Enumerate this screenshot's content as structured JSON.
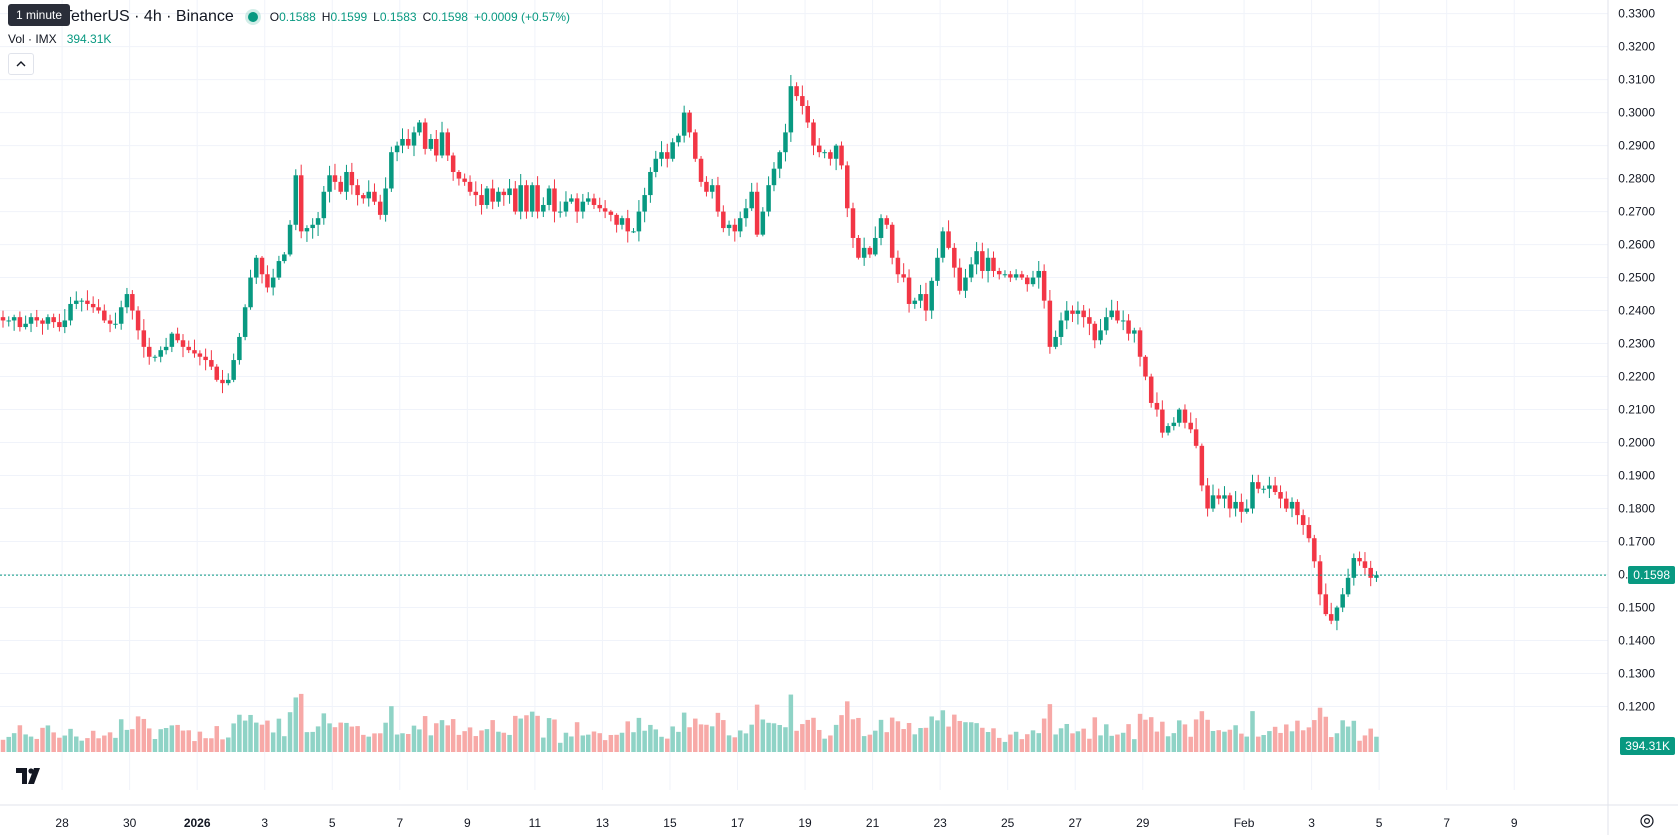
{
  "header": {
    "symbol_title": "IMX / TetherUS · 4h · Binance",
    "symbol_visible": "TetherUS · 4h · Binance",
    "ohlc": {
      "o_label": "O",
      "o": "0.1588",
      "h_label": "H",
      "h": "0.1599",
      "l_label": "L",
      "l": "0.1583",
      "c_label": "C",
      "c": "0.1598",
      "change": "+0.0009 (+0.57%)"
    },
    "tooltip": "1 minute"
  },
  "volume_legend": {
    "label": "Vol · IMX",
    "value": "394.31K"
  },
  "price_axis": {
    "current_price": "0.1598",
    "current_volume": "394.31K"
  },
  "colors": {
    "up": "#089981",
    "down": "#F23645",
    "up_vol": "#8fd3c6",
    "down_vol": "#f7a9a7",
    "grid": "#f0f3fa"
  },
  "icons": {
    "logo": "tradingview-logo-icon",
    "collapse": "chevron-up-icon",
    "settings": "gear-icon"
  },
  "chart_data": {
    "type": "candlestick",
    "interval": "4h",
    "y_ticks": [
      "0.3300",
      "0.3200",
      "0.3100",
      "0.3000",
      "0.2900",
      "0.2800",
      "0.2700",
      "0.2600",
      "0.2500",
      "0.2400",
      "0.2300",
      "0.2200",
      "0.2100",
      "0.2000",
      "0.1900",
      "0.1800",
      "0.1700",
      "0.1600",
      "0.1500",
      "0.1400",
      "0.1300",
      "0.1200"
    ],
    "ylim": [
      0.115,
      0.332
    ],
    "x_tick_labels": [
      "28",
      "30",
      "2026",
      "3",
      "5",
      "7",
      "9",
      "11",
      "13",
      "15",
      "17",
      "19",
      "21",
      "23",
      "25",
      "27",
      "29",
      "Feb",
      "3",
      "5",
      "7",
      "9"
    ],
    "x_tick_days": [
      -4,
      -2,
      0,
      2,
      4,
      6,
      8,
      10,
      12,
      14,
      16,
      18,
      20,
      22,
      24,
      26,
      28,
      31,
      33,
      35,
      37,
      39
    ],
    "xlim_days": [
      -5.75,
      40.0
    ],
    "last_close": 0.1598,
    "candles_4h_closes": [
      [
        -5.75,
        0.237
      ],
      [
        -5.58,
        0.237
      ],
      [
        -5.42,
        0.238
      ],
      [
        -5.25,
        0.235
      ],
      [
        -5.08,
        0.236
      ],
      [
        -4.92,
        0.238
      ],
      [
        -4.75,
        0.237
      ],
      [
        -4.58,
        0.236
      ],
      [
        -4.42,
        0.238
      ],
      [
        -4.25,
        0.2365
      ],
      [
        -4.08,
        0.235
      ],
      [
        -3.92,
        0.237
      ],
      [
        -3.75,
        0.242
      ],
      [
        -3.58,
        0.243
      ],
      [
        -3.42,
        0.243
      ],
      [
        -3.25,
        0.242
      ],
      [
        -3.08,
        0.241
      ],
      [
        -2.92,
        0.24
      ],
      [
        -2.75,
        0.237
      ],
      [
        -2.58,
        0.236
      ],
      [
        -2.42,
        0.236
      ],
      [
        -2.25,
        0.241
      ],
      [
        -2.08,
        0.245
      ],
      [
        -1.92,
        0.24
      ],
      [
        -1.75,
        0.234
      ],
      [
        -1.58,
        0.229
      ],
      [
        -1.42,
        0.226
      ],
      [
        -1.25,
        0.226
      ],
      [
        -1.08,
        0.228
      ],
      [
        -0.92,
        0.229
      ],
      [
        -0.75,
        0.233
      ],
      [
        -0.58,
        0.231
      ],
      [
        -0.42,
        0.229
      ],
      [
        -0.25,
        0.228
      ],
      [
        -0.08,
        0.227
      ],
      [
        0.08,
        0.226
      ],
      [
        0.25,
        0.225
      ],
      [
        0.42,
        0.223
      ],
      [
        0.58,
        0.219
      ],
      [
        0.75,
        0.218
      ],
      [
        0.92,
        0.219
      ],
      [
        1.08,
        0.225
      ],
      [
        1.25,
        0.232
      ],
      [
        1.42,
        0.241
      ],
      [
        1.58,
        0.25
      ],
      [
        1.75,
        0.256
      ],
      [
        1.92,
        0.251
      ],
      [
        2.08,
        0.247
      ],
      [
        2.25,
        0.25
      ],
      [
        2.42,
        0.255
      ],
      [
        2.58,
        0.257
      ],
      [
        2.75,
        0.266
      ],
      [
        2.92,
        0.281
      ],
      [
        3.08,
        0.264
      ],
      [
        3.25,
        0.265
      ],
      [
        3.42,
        0.266
      ],
      [
        3.58,
        0.268
      ],
      [
        3.75,
        0.276
      ],
      [
        3.92,
        0.281
      ],
      [
        4.08,
        0.279
      ],
      [
        4.25,
        0.276
      ],
      [
        4.42,
        0.282
      ],
      [
        4.58,
        0.278
      ],
      [
        4.75,
        0.275
      ],
      [
        4.92,
        0.274
      ],
      [
        5.08,
        0.276
      ],
      [
        5.25,
        0.273
      ],
      [
        5.42,
        0.269
      ],
      [
        5.58,
        0.277
      ],
      [
        5.75,
        0.288
      ],
      [
        5.92,
        0.29
      ],
      [
        6.08,
        0.292
      ],
      [
        6.25,
        0.29
      ],
      [
        6.42,
        0.294
      ],
      [
        6.58,
        0.297
      ],
      [
        6.75,
        0.289
      ],
      [
        6.92,
        0.292
      ],
      [
        7.08,
        0.287
      ],
      [
        7.25,
        0.294
      ],
      [
        7.42,
        0.287
      ],
      [
        7.58,
        0.282
      ],
      [
        7.75,
        0.28
      ],
      [
        7.92,
        0.279
      ],
      [
        8.08,
        0.276
      ],
      [
        8.25,
        0.275
      ],
      [
        8.42,
        0.272
      ],
      [
        8.58,
        0.277
      ],
      [
        8.75,
        0.273
      ],
      [
        8.92,
        0.276
      ],
      [
        9.08,
        0.275
      ],
      [
        9.25,
        0.277
      ],
      [
        9.42,
        0.27
      ],
      [
        9.58,
        0.278
      ],
      [
        9.75,
        0.27
      ],
      [
        9.92,
        0.278
      ],
      [
        10.08,
        0.27
      ],
      [
        10.25,
        0.272
      ],
      [
        10.42,
        0.277
      ],
      [
        10.58,
        0.27
      ],
      [
        10.75,
        0.27
      ],
      [
        10.92,
        0.273
      ],
      [
        11.08,
        0.274
      ],
      [
        11.25,
        0.27
      ],
      [
        11.42,
        0.273
      ],
      [
        11.58,
        0.274
      ],
      [
        11.75,
        0.272
      ],
      [
        11.92,
        0.271
      ],
      [
        12.08,
        0.27
      ],
      [
        12.25,
        0.269
      ],
      [
        12.42,
        0.266
      ],
      [
        12.58,
        0.268
      ],
      [
        12.75,
        0.264
      ],
      [
        12.92,
        0.264
      ],
      [
        13.08,
        0.27
      ],
      [
        13.25,
        0.275
      ],
      [
        13.42,
        0.282
      ],
      [
        13.58,
        0.286
      ],
      [
        13.75,
        0.288
      ],
      [
        13.92,
        0.286
      ],
      [
        14.08,
        0.291
      ],
      [
        14.25,
        0.293
      ],
      [
        14.42,
        0.3
      ],
      [
        14.58,
        0.294
      ],
      [
        14.75,
        0.286
      ],
      [
        14.92,
        0.279
      ],
      [
        15.08,
        0.276
      ],
      [
        15.25,
        0.278
      ],
      [
        15.42,
        0.27
      ],
      [
        15.58,
        0.265
      ],
      [
        15.75,
        0.266
      ],
      [
        15.92,
        0.264
      ],
      [
        16.08,
        0.268
      ],
      [
        16.25,
        0.271
      ],
      [
        16.42,
        0.276
      ],
      [
        16.58,
        0.263
      ],
      [
        16.75,
        0.27
      ],
      [
        16.92,
        0.278
      ],
      [
        17.08,
        0.283
      ],
      [
        17.25,
        0.288
      ],
      [
        17.42,
        0.294
      ],
      [
        17.58,
        0.308
      ],
      [
        17.75,
        0.305
      ],
      [
        17.92,
        0.302
      ],
      [
        18.08,
        0.297
      ],
      [
        18.25,
        0.29
      ],
      [
        18.42,
        0.288
      ],
      [
        18.58,
        0.288
      ],
      [
        18.75,
        0.286
      ],
      [
        18.92,
        0.29
      ],
      [
        19.08,
        0.284
      ],
      [
        19.25,
        0.271
      ],
      [
        19.42,
        0.262
      ],
      [
        19.58,
        0.256
      ],
      [
        19.75,
        0.259
      ],
      [
        19.92,
        0.257
      ],
      [
        20.08,
        0.262
      ],
      [
        20.25,
        0.268
      ],
      [
        20.42,
        0.266
      ],
      [
        20.58,
        0.256
      ],
      [
        20.75,
        0.251
      ],
      [
        20.92,
        0.25
      ],
      [
        21.08,
        0.242
      ],
      [
        21.25,
        0.243
      ],
      [
        21.42,
        0.245
      ],
      [
        21.58,
        0.24
      ],
      [
        21.75,
        0.249
      ],
      [
        21.92,
        0.256
      ],
      [
        22.08,
        0.264
      ],
      [
        22.25,
        0.259
      ],
      [
        22.42,
        0.253
      ],
      [
        22.58,
        0.246
      ],
      [
        22.75,
        0.25
      ],
      [
        22.92,
        0.254
      ],
      [
        23.08,
        0.258
      ],
      [
        23.25,
        0.252
      ],
      [
        23.42,
        0.256
      ],
      [
        23.58,
        0.252
      ],
      [
        23.75,
        0.251
      ],
      [
        23.92,
        0.251
      ],
      [
        24.08,
        0.25
      ],
      [
        24.25,
        0.251
      ],
      [
        24.42,
        0.25
      ],
      [
        24.58,
        0.248
      ],
      [
        24.75,
        0.25
      ],
      [
        24.92,
        0.252
      ],
      [
        25.08,
        0.243
      ],
      [
        25.25,
        0.229
      ],
      [
        25.42,
        0.232
      ],
      [
        25.58,
        0.237
      ],
      [
        25.75,
        0.24
      ],
      [
        25.92,
        0.239
      ],
      [
        26.08,
        0.24
      ],
      [
        26.25,
        0.238
      ],
      [
        26.42,
        0.236
      ],
      [
        26.58,
        0.231
      ],
      [
        26.75,
        0.234
      ],
      [
        26.92,
        0.238
      ],
      [
        27.08,
        0.24
      ],
      [
        27.25,
        0.237
      ],
      [
        27.42,
        0.237
      ],
      [
        27.58,
        0.233
      ],
      [
        27.75,
        0.234
      ],
      [
        27.92,
        0.226
      ],
      [
        28.08,
        0.22
      ],
      [
        28.25,
        0.212
      ],
      [
        28.42,
        0.21
      ],
      [
        28.58,
        0.203
      ],
      [
        28.75,
        0.205
      ],
      [
        28.92,
        0.206
      ],
      [
        29.08,
        0.21
      ],
      [
        29.25,
        0.206
      ],
      [
        29.42,
        0.204
      ],
      [
        29.58,
        0.199
      ],
      [
        29.75,
        0.187
      ],
      [
        29.92,
        0.18
      ],
      [
        30.08,
        0.184
      ],
      [
        30.25,
        0.183
      ],
      [
        30.42,
        0.184
      ],
      [
        30.58,
        0.18
      ],
      [
        30.75,
        0.182
      ],
      [
        30.92,
        0.179
      ],
      [
        31.08,
        0.18
      ],
      [
        31.25,
        0.188
      ],
      [
        31.42,
        0.186
      ],
      [
        31.58,
        0.186
      ],
      [
        31.75,
        0.187
      ],
      [
        31.92,
        0.185
      ],
      [
        32.08,
        0.183
      ],
      [
        32.25,
        0.18
      ],
      [
        32.42,
        0.182
      ],
      [
        32.58,
        0.178
      ],
      [
        32.75,
        0.175
      ],
      [
        32.92,
        0.171
      ],
      [
        33.08,
        0.164
      ],
      [
        33.25,
        0.154
      ],
      [
        33.42,
        0.148
      ],
      [
        33.58,
        0.146
      ],
      [
        33.75,
        0.15
      ],
      [
        33.92,
        0.154
      ],
      [
        34.08,
        0.159
      ],
      [
        34.25,
        0.165
      ],
      [
        34.42,
        0.164
      ],
      [
        34.58,
        0.162
      ],
      [
        34.75,
        0.159
      ],
      [
        34.92,
        0.1598
      ]
    ]
  }
}
